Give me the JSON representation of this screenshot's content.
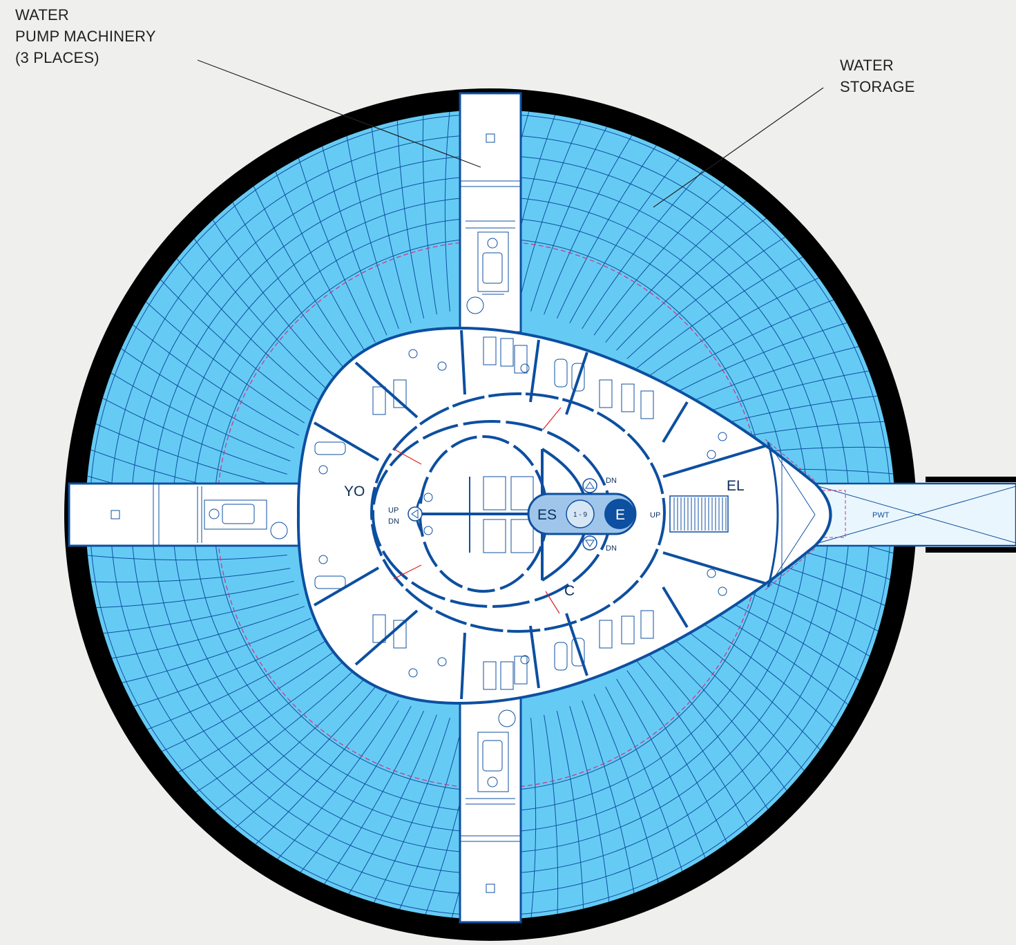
{
  "callouts": {
    "pump": [
      "WATER",
      "PUMP MACHINERY",
      "(3 PLACES)"
    ],
    "storage": [
      "WATER",
      "STORAGE"
    ]
  },
  "labels": {
    "yo": "YO",
    "el": "EL",
    "c": "C",
    "es": "ES",
    "elevator_range": "1 - 9",
    "e": "E",
    "stair_up": "UP",
    "stair_dn": "DN",
    "dn_upper": "DN",
    "dn_lower": "DN",
    "up_east": "UP",
    "pwt": "PWT"
  },
  "colors": {
    "water": "#66cbf4",
    "structure": "#0d4fa0",
    "rim": "#000000",
    "floor": "#ffffff",
    "background": "#efefed",
    "safety_line": "#d0317c",
    "tie_line": "#e02020",
    "elevator_bay": "#9fc6ea",
    "elevator_car": "#0d4fa0"
  }
}
